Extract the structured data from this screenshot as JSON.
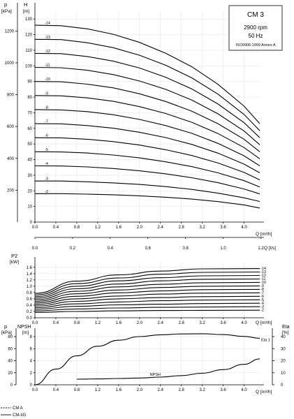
{
  "chart_data": [
    {
      "type": "line",
      "name": "head",
      "xlabel": "Q [m³/h]",
      "secondary_x": {
        "label": "Q [l/s]",
        "ticks": [
          "0.0",
          "0.2",
          "0.4",
          "0.6",
          "0.8",
          "1.0",
          "1.2"
        ]
      },
      "ylabel_left": "p [kPa]",
      "ylabel_right": "H [m]",
      "xlim": [
        0,
        4.3
      ],
      "ylim": [
        0,
        135
      ],
      "x_ticks": [
        "0.0",
        "0.4",
        "0.8",
        "1.2",
        "1.6",
        "2.0",
        "2.4",
        "2.8",
        "3.2",
        "3.6",
        "4.0"
      ],
      "y_ticks_head": [
        "0",
        "10",
        "20",
        "30",
        "40",
        "50",
        "60",
        "70",
        "80",
        "90",
        "100",
        "110",
        "120",
        "130"
      ],
      "y_ticks_kpa": [
        "200",
        "400",
        "600",
        "800",
        "1000",
        "1200"
      ],
      "grid": true,
      "info_box": [
        "CM 3",
        "2900 rpm",
        "50 Hz",
        "ISO9906:1999 Annex A"
      ],
      "series": [
        {
          "name": "-2",
          "x": [
            0,
            0.5,
            1,
            1.5,
            2,
            2.5,
            3,
            3.5,
            4,
            4.3
          ],
          "y": [
            18.2,
            18.2,
            17.9,
            17.5,
            16.8,
            15.9,
            14.7,
            13.1,
            11.0,
            9.0
          ]
        },
        {
          "name": "-3",
          "x": [
            0,
            0.5,
            1,
            1.5,
            2,
            2.5,
            3,
            3.5,
            4,
            4.3
          ],
          "y": [
            26.3,
            26.3,
            25.8,
            25.1,
            24.1,
            22.7,
            20.9,
            18.5,
            15.5,
            13.2
          ]
        },
        {
          "name": "-4",
          "x": [
            0,
            0.5,
            1,
            1.5,
            2,
            2.5,
            3,
            3.5,
            4,
            4.3
          ],
          "y": [
            36.0,
            35.9,
            35.3,
            34.3,
            32.8,
            30.9,
            28.4,
            25.2,
            21.2,
            18.0
          ]
        },
        {
          "name": "-5",
          "x": [
            0,
            0.5,
            1,
            1.5,
            2,
            2.5,
            3,
            3.5,
            4,
            4.3
          ],
          "y": [
            45.0,
            44.9,
            44.2,
            42.9,
            41.1,
            38.6,
            35.5,
            31.5,
            26.5,
            22.5
          ]
        },
        {
          "name": "-6",
          "x": [
            0,
            0.5,
            1,
            1.5,
            2,
            2.5,
            3,
            3.5,
            4,
            4.3
          ],
          "y": [
            54.0,
            53.9,
            53.0,
            51.5,
            49.3,
            46.3,
            42.6,
            37.8,
            31.8,
            27.0
          ]
        },
        {
          "name": "-7",
          "x": [
            0,
            0.5,
            1,
            1.5,
            2,
            2.5,
            3,
            3.5,
            4,
            4.3
          ],
          "y": [
            63.0,
            62.9,
            61.8,
            60.1,
            57.5,
            54.1,
            49.7,
            44.1,
            37.1,
            31.5
          ]
        },
        {
          "name": "-8",
          "x": [
            0,
            0.5,
            1,
            1.5,
            2,
            2.5,
            3,
            3.5,
            4,
            4.3
          ],
          "y": [
            72.0,
            71.8,
            70.7,
            68.7,
            65.7,
            61.8,
            56.8,
            50.4,
            42.4,
            36.0
          ]
        },
        {
          "name": "-9",
          "x": [
            0,
            0.5,
            1,
            1.5,
            2,
            2.5,
            3,
            3.5,
            4,
            4.3
          ],
          "y": [
            81.0,
            80.8,
            79.5,
            77.3,
            73.9,
            69.5,
            63.9,
            56.7,
            47.7,
            40.5
          ]
        },
        {
          "name": "-10",
          "x": [
            0,
            0.5,
            1,
            1.5,
            2,
            2.5,
            3,
            3.5,
            4,
            4.3
          ],
          "y": [
            90.0,
            89.8,
            88.3,
            85.9,
            82.1,
            77.2,
            71.0,
            63.0,
            53.0,
            45.0
          ]
        },
        {
          "name": "-11",
          "x": [
            0,
            0.5,
            1,
            1.5,
            2,
            2.5,
            3,
            3.5,
            4,
            4.3
          ],
          "y": [
            99.0,
            98.8,
            97.2,
            94.4,
            90.3,
            85.0,
            78.1,
            69.3,
            58.3,
            49.5
          ]
        },
        {
          "name": "-12",
          "x": [
            0,
            0.5,
            1,
            1.5,
            2,
            2.5,
            3,
            3.5,
            4,
            4.3
          ],
          "y": [
            108.0,
            107.8,
            106.0,
            103.0,
            98.6,
            92.7,
            85.2,
            75.6,
            63.6,
            54.0
          ]
        },
        {
          "name": "-13",
          "x": [
            0,
            0.5,
            1,
            1.5,
            2,
            2.5,
            3,
            3.5,
            4,
            4.3
          ],
          "y": [
            117.0,
            116.8,
            114.8,
            111.6,
            106.8,
            100.4,
            92.3,
            81.9,
            68.9,
            58.5
          ]
        },
        {
          "name": "-14",
          "x": [
            0,
            0.5,
            1,
            1.5,
            2,
            2.5,
            3,
            3.5,
            4,
            4.3
          ],
          "y": [
            126.0,
            125.7,
            123.7,
            120.2,
            115.0,
            108.1,
            99.4,
            88.2,
            74.2,
            63.0
          ]
        }
      ]
    },
    {
      "type": "line",
      "name": "power",
      "ylabel": "P2 [kW]",
      "xlabel": "Q [m³/h]",
      "xlim": [
        0,
        4.3
      ],
      "ylim": [
        0,
        1.75
      ],
      "x_ticks": [
        "0.0",
        "0.4",
        "0.8",
        "1.2",
        "1.6",
        "2.0",
        "2.4",
        "2.8",
        "3.2",
        "3.6",
        "4.0"
      ],
      "y_ticks": [
        "0.0",
        "0.2",
        "0.4",
        "0.6",
        "0.8",
        "1.0",
        "1.2",
        "1.4",
        "1.6"
      ],
      "grid": true,
      "series": [
        {
          "name": "-2",
          "x": [
            0,
            0.8,
            1.6,
            2.4,
            3.2,
            4.3
          ],
          "y": [
            0.17,
            0.2,
            0.22,
            0.23,
            0.235,
            0.24
          ]
        },
        {
          "name": "-3",
          "x": [
            0,
            0.8,
            1.6,
            2.4,
            3.2,
            4.3
          ],
          "y": [
            0.22,
            0.28,
            0.31,
            0.33,
            0.34,
            0.35
          ]
        },
        {
          "name": "-4",
          "x": [
            0,
            0.8,
            1.6,
            2.4,
            3.2,
            4.3
          ],
          "y": [
            0.27,
            0.36,
            0.41,
            0.43,
            0.45,
            0.46
          ]
        },
        {
          "name": "-5",
          "x": [
            0,
            0.8,
            1.6,
            2.4,
            3.2,
            4.3
          ],
          "y": [
            0.32,
            0.44,
            0.5,
            0.54,
            0.56,
            0.57
          ]
        },
        {
          "name": "-6",
          "x": [
            0,
            0.8,
            1.6,
            2.4,
            3.2,
            4.3
          ],
          "y": [
            0.37,
            0.52,
            0.6,
            0.64,
            0.67,
            0.68
          ]
        },
        {
          "name": "-7",
          "x": [
            0,
            0.8,
            1.6,
            2.4,
            3.2,
            4.3
          ],
          "y": [
            0.42,
            0.6,
            0.69,
            0.75,
            0.78,
            0.79
          ]
        },
        {
          "name": "-8",
          "x": [
            0,
            0.8,
            1.6,
            2.4,
            3.2,
            4.3
          ],
          "y": [
            0.47,
            0.68,
            0.79,
            0.85,
            0.89,
            0.9
          ]
        },
        {
          "name": "-9",
          "x": [
            0,
            0.8,
            1.6,
            2.4,
            3.2,
            4.3
          ],
          "y": [
            0.52,
            0.76,
            0.88,
            0.96,
            1.0,
            1.01
          ]
        },
        {
          "name": "-10",
          "x": [
            0,
            0.8,
            1.6,
            2.4,
            3.2,
            4.3
          ],
          "y": [
            0.57,
            0.84,
            0.98,
            1.06,
            1.11,
            1.12
          ]
        },
        {
          "name": "-11",
          "x": [
            0,
            0.8,
            1.6,
            2.4,
            3.2,
            4.3
          ],
          "y": [
            0.62,
            0.92,
            1.07,
            1.17,
            1.22,
            1.23
          ]
        },
        {
          "name": "-12",
          "x": [
            0,
            0.8,
            1.6,
            2.4,
            3.2,
            4.3
          ],
          "y": [
            0.67,
            1.0,
            1.17,
            1.27,
            1.33,
            1.34
          ]
        },
        {
          "name": "-13",
          "x": [
            0,
            0.8,
            1.6,
            2.4,
            3.2,
            4.3
          ],
          "y": [
            0.72,
            1.08,
            1.26,
            1.38,
            1.44,
            1.45
          ]
        },
        {
          "name": "-14",
          "x": [
            0,
            0.8,
            1.6,
            2.4,
            3.2,
            4.3
          ],
          "y": [
            0.77,
            1.16,
            1.36,
            1.48,
            1.55,
            1.56
          ]
        }
      ]
    },
    {
      "type": "line",
      "name": "npsh-efficiency",
      "xlabel": "Q [m³/h]",
      "xlim": [
        0,
        4.3
      ],
      "x_ticks": [
        "0.0",
        "0.4",
        "0.8",
        "1.2",
        "1.6",
        "2.0",
        "2.4",
        "2.8",
        "3.2",
        "3.6",
        "4.0"
      ],
      "left_axis": {
        "label": "p [kPa]",
        "ticks": [
          "0",
          "20",
          "40",
          "60",
          "80"
        ],
        "ylim": [
          0,
          87
        ]
      },
      "npsh_axis": {
        "label": "NPSH [m]",
        "ticks": [
          "0",
          "2",
          "4",
          "6",
          "8"
        ],
        "ylim": [
          0,
          8.7
        ]
      },
      "right_axis": {
        "label": "Eta [%]",
        "ticks": [
          "0",
          "10",
          "20",
          "30",
          "40"
        ],
        "ylim": [
          0,
          43.5
        ]
      },
      "grid": true,
      "series": [
        {
          "name": "Eta 1",
          "axis": "right",
          "x": [
            0,
            0.4,
            0.8,
            1.2,
            1.6,
            2.0,
            2.4,
            2.8,
            3.2,
            3.6,
            4.0,
            4.3
          ],
          "y": [
            0,
            13,
            24,
            32,
            37,
            40,
            41.5,
            42.2,
            42.4,
            41.7,
            40.2,
            38.6
          ]
        },
        {
          "name": "NPSH",
          "axis": "npsh",
          "x": [
            0.8,
            1.2,
            1.6,
            2.0,
            2.4,
            2.8,
            3.2,
            3.6,
            4.0,
            4.3
          ],
          "y": [
            0.93,
            0.98,
            1.04,
            1.13,
            1.28,
            1.52,
            1.92,
            2.52,
            3.4,
            4.3
          ]
        }
      ]
    }
  ],
  "legend": [
    {
      "label": "CM A",
      "style": "dashed"
    },
    {
      "label": "CM-I/G",
      "style": "solid"
    }
  ]
}
